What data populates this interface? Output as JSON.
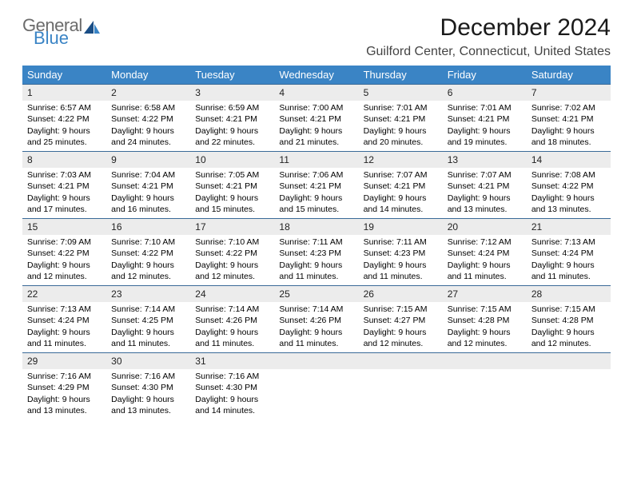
{
  "logo": {
    "general": "General",
    "blue": "Blue"
  },
  "title": "December 2024",
  "location": "Guilford Center, Connecticut, United States",
  "day_headers": [
    "Sunday",
    "Monday",
    "Tuesday",
    "Wednesday",
    "Thursday",
    "Friday",
    "Saturday"
  ],
  "colors": {
    "header_bg": "#3a84c5",
    "row_border": "#3a6a98",
    "daynum_bg": "#ececec"
  },
  "weeks": [
    [
      {
        "n": "1",
        "sr": "6:57 AM",
        "ss": "4:22 PM",
        "dl": "9 hours and 25 minutes."
      },
      {
        "n": "2",
        "sr": "6:58 AM",
        "ss": "4:22 PM",
        "dl": "9 hours and 24 minutes."
      },
      {
        "n": "3",
        "sr": "6:59 AM",
        "ss": "4:21 PM",
        "dl": "9 hours and 22 minutes."
      },
      {
        "n": "4",
        "sr": "7:00 AM",
        "ss": "4:21 PM",
        "dl": "9 hours and 21 minutes."
      },
      {
        "n": "5",
        "sr": "7:01 AM",
        "ss": "4:21 PM",
        "dl": "9 hours and 20 minutes."
      },
      {
        "n": "6",
        "sr": "7:01 AM",
        "ss": "4:21 PM",
        "dl": "9 hours and 19 minutes."
      },
      {
        "n": "7",
        "sr": "7:02 AM",
        "ss": "4:21 PM",
        "dl": "9 hours and 18 minutes."
      }
    ],
    [
      {
        "n": "8",
        "sr": "7:03 AM",
        "ss": "4:21 PM",
        "dl": "9 hours and 17 minutes."
      },
      {
        "n": "9",
        "sr": "7:04 AM",
        "ss": "4:21 PM",
        "dl": "9 hours and 16 minutes."
      },
      {
        "n": "10",
        "sr": "7:05 AM",
        "ss": "4:21 PM",
        "dl": "9 hours and 15 minutes."
      },
      {
        "n": "11",
        "sr": "7:06 AM",
        "ss": "4:21 PM",
        "dl": "9 hours and 15 minutes."
      },
      {
        "n": "12",
        "sr": "7:07 AM",
        "ss": "4:21 PM",
        "dl": "9 hours and 14 minutes."
      },
      {
        "n": "13",
        "sr": "7:07 AM",
        "ss": "4:21 PM",
        "dl": "9 hours and 13 minutes."
      },
      {
        "n": "14",
        "sr": "7:08 AM",
        "ss": "4:22 PM",
        "dl": "9 hours and 13 minutes."
      }
    ],
    [
      {
        "n": "15",
        "sr": "7:09 AM",
        "ss": "4:22 PM",
        "dl": "9 hours and 12 minutes."
      },
      {
        "n": "16",
        "sr": "7:10 AM",
        "ss": "4:22 PM",
        "dl": "9 hours and 12 minutes."
      },
      {
        "n": "17",
        "sr": "7:10 AM",
        "ss": "4:22 PM",
        "dl": "9 hours and 12 minutes."
      },
      {
        "n": "18",
        "sr": "7:11 AM",
        "ss": "4:23 PM",
        "dl": "9 hours and 11 minutes."
      },
      {
        "n": "19",
        "sr": "7:11 AM",
        "ss": "4:23 PM",
        "dl": "9 hours and 11 minutes."
      },
      {
        "n": "20",
        "sr": "7:12 AM",
        "ss": "4:24 PM",
        "dl": "9 hours and 11 minutes."
      },
      {
        "n": "21",
        "sr": "7:13 AM",
        "ss": "4:24 PM",
        "dl": "9 hours and 11 minutes."
      }
    ],
    [
      {
        "n": "22",
        "sr": "7:13 AM",
        "ss": "4:24 PM",
        "dl": "9 hours and 11 minutes."
      },
      {
        "n": "23",
        "sr": "7:14 AM",
        "ss": "4:25 PM",
        "dl": "9 hours and 11 minutes."
      },
      {
        "n": "24",
        "sr": "7:14 AM",
        "ss": "4:26 PM",
        "dl": "9 hours and 11 minutes."
      },
      {
        "n": "25",
        "sr": "7:14 AM",
        "ss": "4:26 PM",
        "dl": "9 hours and 11 minutes."
      },
      {
        "n": "26",
        "sr": "7:15 AM",
        "ss": "4:27 PM",
        "dl": "9 hours and 12 minutes."
      },
      {
        "n": "27",
        "sr": "7:15 AM",
        "ss": "4:28 PM",
        "dl": "9 hours and 12 minutes."
      },
      {
        "n": "28",
        "sr": "7:15 AM",
        "ss": "4:28 PM",
        "dl": "9 hours and 12 minutes."
      }
    ],
    [
      {
        "n": "29",
        "sr": "7:16 AM",
        "ss": "4:29 PM",
        "dl": "9 hours and 13 minutes."
      },
      {
        "n": "30",
        "sr": "7:16 AM",
        "ss": "4:30 PM",
        "dl": "9 hours and 13 minutes."
      },
      {
        "n": "31",
        "sr": "7:16 AM",
        "ss": "4:30 PM",
        "dl": "9 hours and 14 minutes."
      },
      null,
      null,
      null,
      null
    ]
  ]
}
